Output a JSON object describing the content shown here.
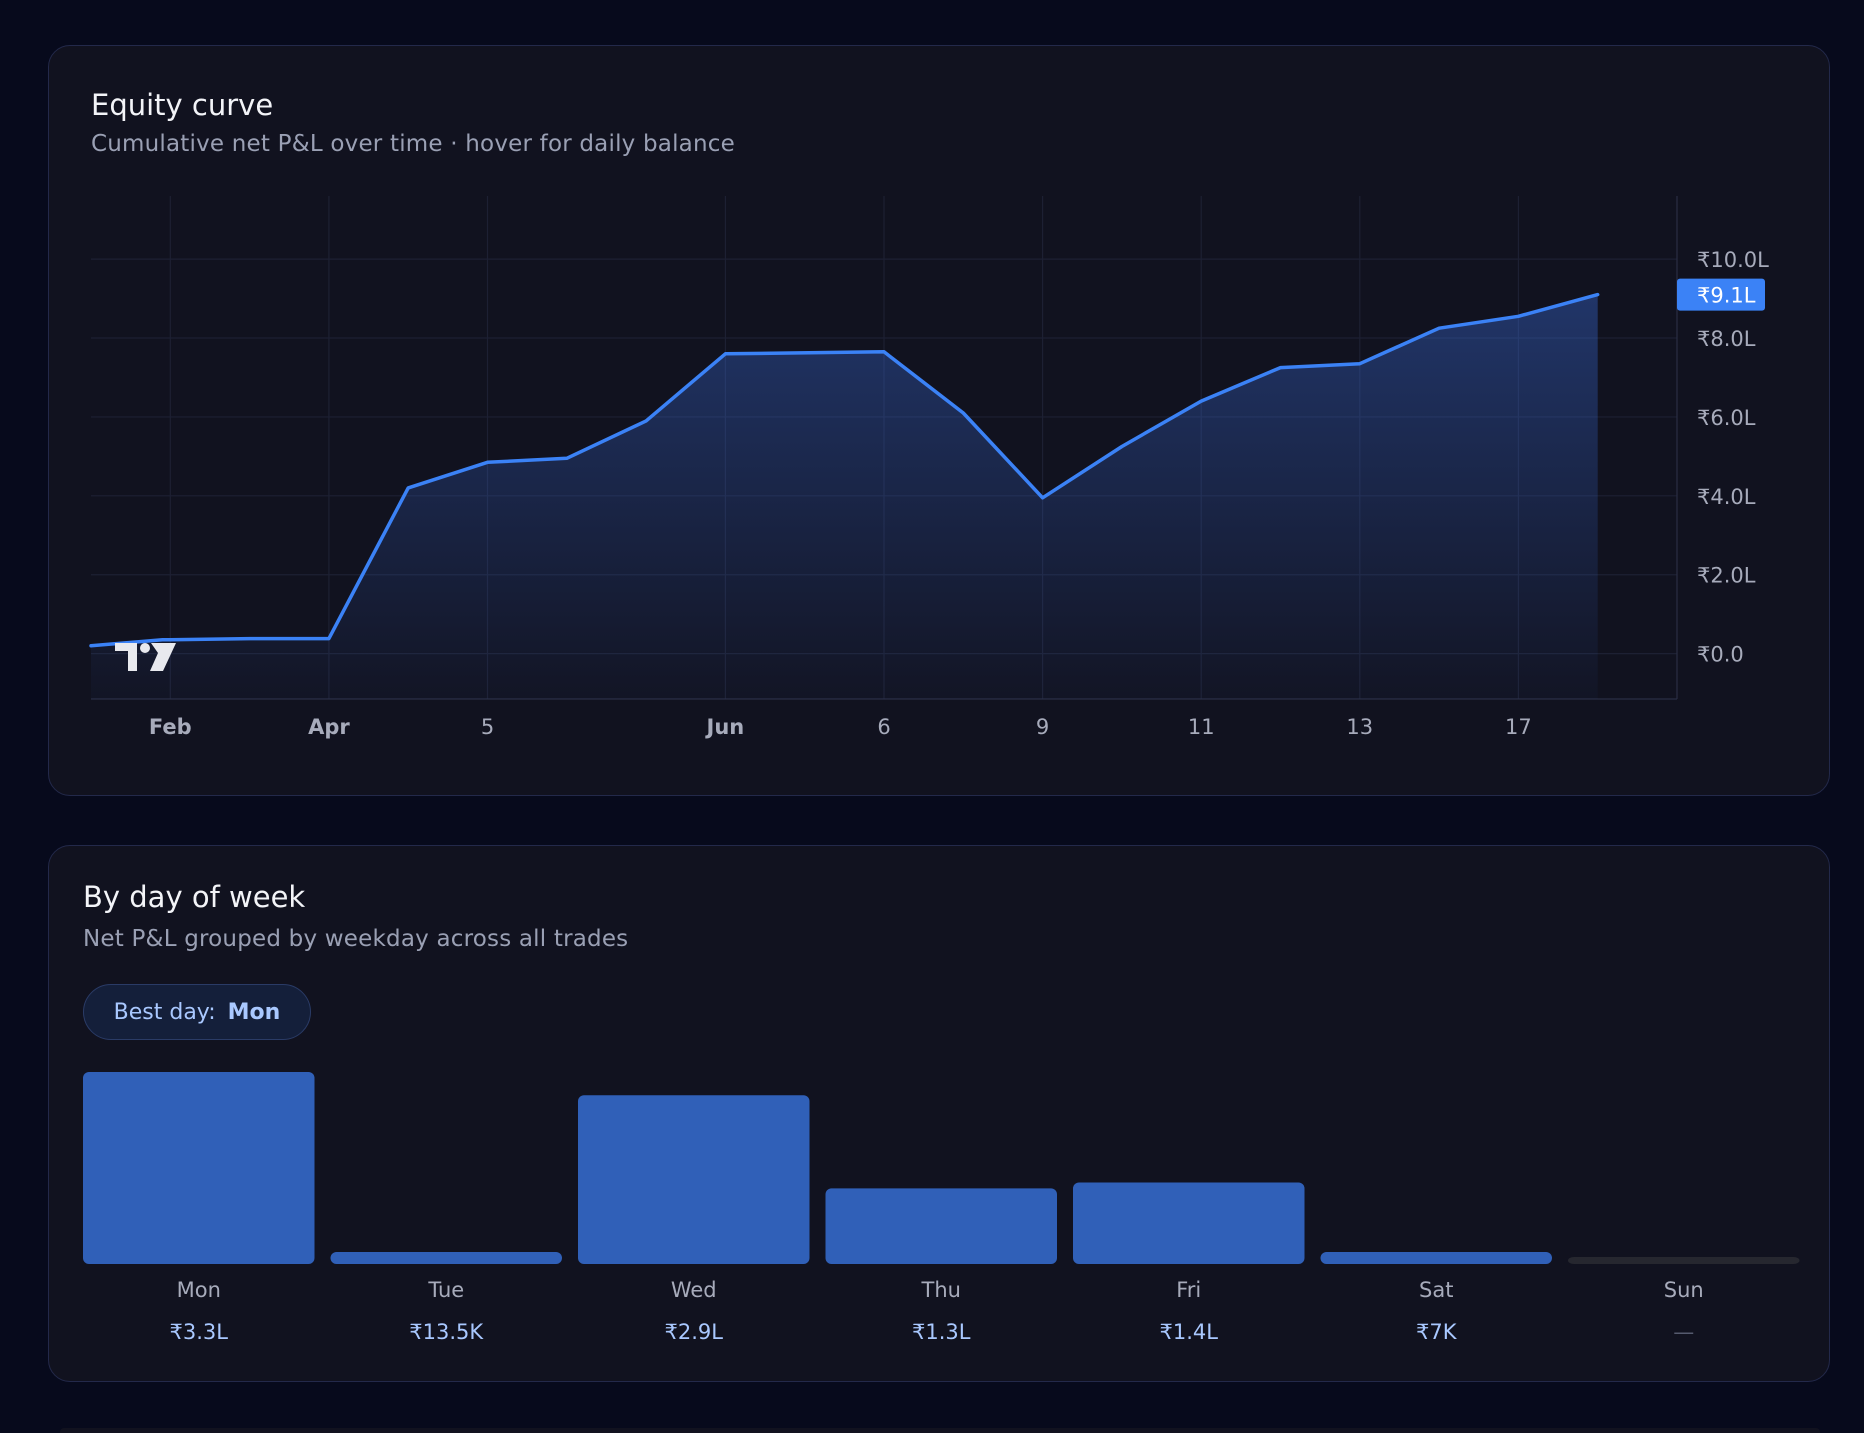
{
  "equity": {
    "title": "Equity curve",
    "subtitle": "Cumulative net P&L over time · hover for daily balance",
    "last_value_badge": "₹9.1L"
  },
  "day_of_week": {
    "title": "By day of week",
    "subtitle": "Net P&L grouped by weekday across all trades",
    "best_day_label": "Best day:",
    "best_day_value": "Mon"
  },
  "colors": {
    "background": "#070a1c",
    "card": "#11121f",
    "line": "#3b82f6",
    "bar": "#3060b8",
    "accent_text": "#a9c8ff"
  },
  "chart_data": [
    {
      "type": "area",
      "name": "equity-curve",
      "x_tick_labels": [
        "Feb",
        "Apr",
        "5",
        "Jun",
        "6",
        "9",
        "11",
        "13",
        "17"
      ],
      "x_tick_bold": [
        true,
        true,
        false,
        true,
        false,
        false,
        false,
        false,
        false
      ],
      "y_tick_labels": [
        "₹10.0L",
        "₹8.0L",
        "₹6.0L",
        "₹4.0L",
        "₹2.0L",
        "₹0.0"
      ],
      "y_ticks": [
        10,
        8,
        6,
        4,
        2,
        0
      ],
      "ylim": [
        -1.15,
        11.6
      ],
      "y_unit": "₹ lakh",
      "x_index_range": [
        0,
        20
      ],
      "x_tick_index": [
        1,
        3,
        5,
        8,
        10,
        12,
        14,
        16,
        18
      ],
      "series": [
        {
          "points_index": [
            0,
            0.9,
            1,
            2,
            3,
            4,
            5,
            6,
            7,
            8,
            10,
            11,
            12,
            13,
            14,
            15,
            16,
            17,
            18,
            19
          ],
          "values": [
            0.2,
            0.35,
            0.35,
            0.38,
            0.38,
            4.2,
            4.85,
            4.95,
            5.9,
            7.6,
            7.65,
            6.1,
            3.95,
            5.25,
            6.4,
            7.25,
            7.35,
            8.25,
            8.55,
            9.1
          ]
        }
      ],
      "grid": true,
      "watermark": "TradingView logo"
    },
    {
      "type": "bar",
      "name": "pnl-by-weekday",
      "categories": [
        "Mon",
        "Tue",
        "Wed",
        "Thu",
        "Fri",
        "Sat",
        "Sun"
      ],
      "values": [
        330000,
        13500,
        290000,
        130000,
        140000,
        7000,
        0
      ],
      "value_labels": [
        "₹3.3L",
        "₹13.5K",
        "₹2.9L",
        "₹1.3L",
        "₹1.4L",
        "₹7K",
        "—"
      ]
    }
  ]
}
